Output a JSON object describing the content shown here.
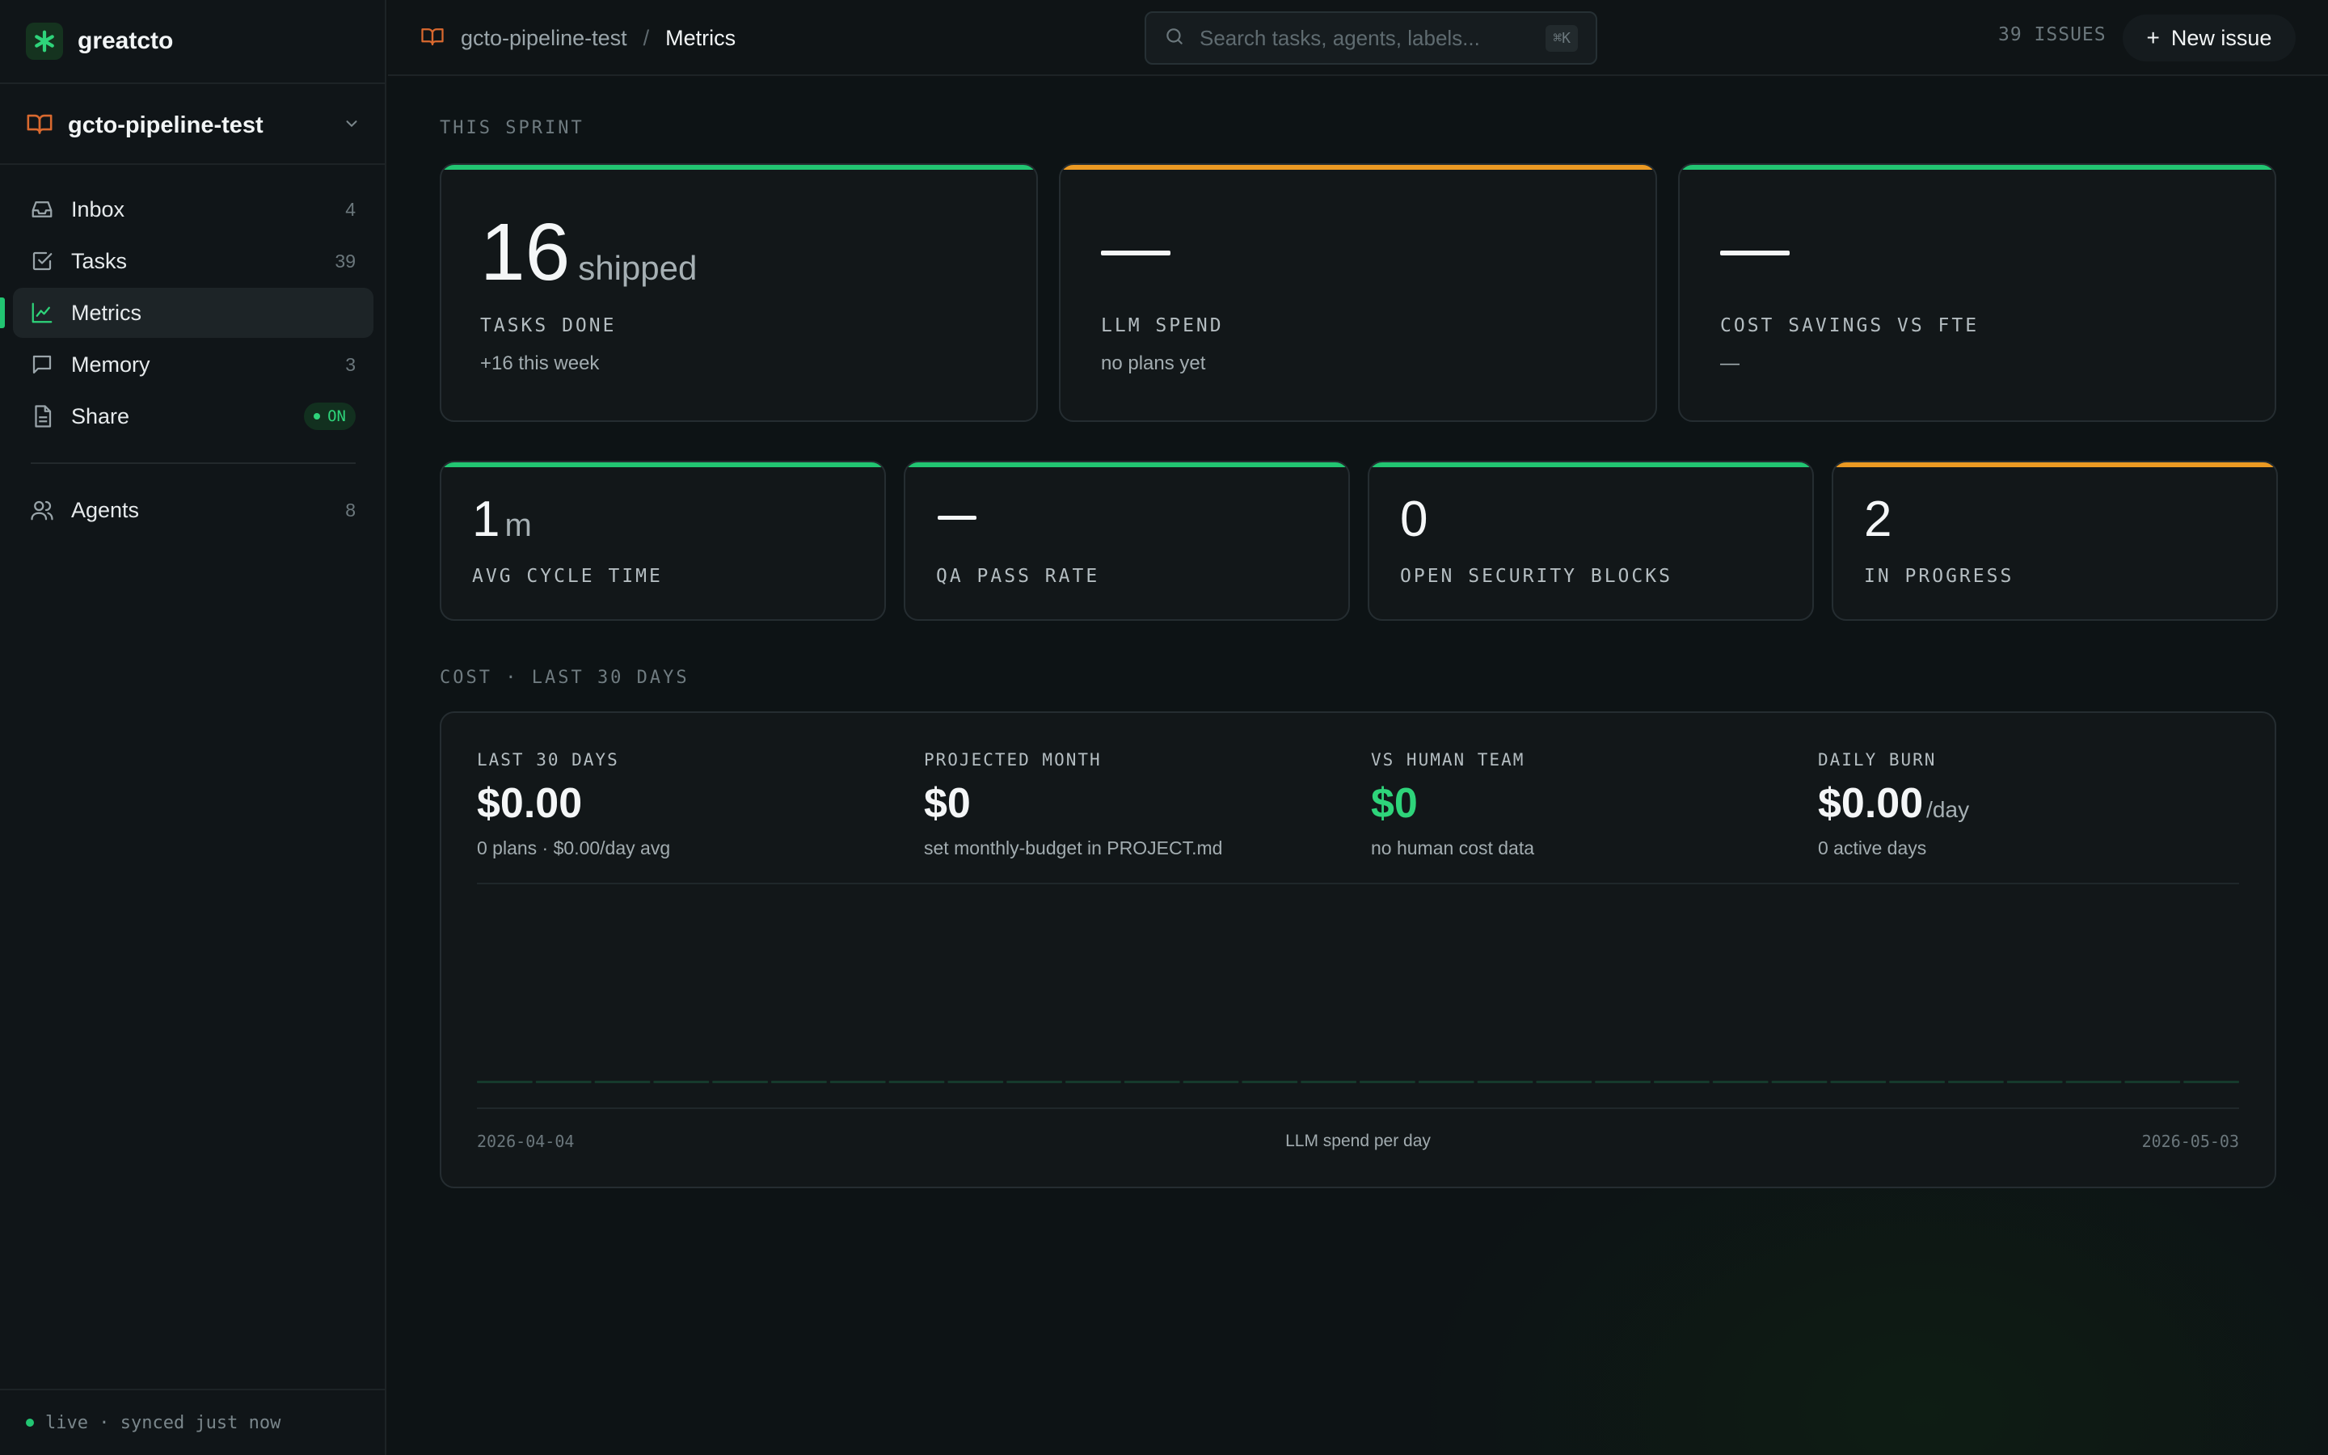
{
  "brand": {
    "name": "greatcto",
    "logo_icon": "asterisk-icon",
    "accent": "#22c572"
  },
  "project": {
    "name": "gcto-pipeline-test"
  },
  "nav": {
    "items": [
      {
        "label": "Inbox",
        "count": "4",
        "icon": "inbox-icon"
      },
      {
        "label": "Tasks",
        "count": "39",
        "icon": "checkbox-icon"
      },
      {
        "label": "Metrics",
        "count": "",
        "icon": "chart-icon",
        "active": true
      },
      {
        "label": "Memory",
        "count": "3",
        "icon": "chat-bubble-icon"
      },
      {
        "label": "Share",
        "badge": "ON",
        "icon": "document-icon"
      }
    ],
    "secondary": [
      {
        "label": "Agents",
        "count": "8",
        "icon": "users-icon"
      }
    ]
  },
  "footer": {
    "status": "live · synced just now"
  },
  "topbar": {
    "breadcrumb_project": "gcto-pipeline-test",
    "breadcrumb_separator": "/",
    "breadcrumb_current": "Metrics",
    "search_placeholder": "Search tasks, agents, labels...",
    "search_shortcut": "⌘K",
    "issues_count": "39 ISSUES",
    "new_issue_label": "New issue"
  },
  "sprint": {
    "label": "THIS SPRINT",
    "cards": [
      {
        "value": "16",
        "unit": "shipped",
        "title": "TASKS DONE",
        "sub": "+16 this week",
        "accent": "#22c572"
      },
      {
        "value": "—",
        "title": "LLM SPEND",
        "sub": "no plans yet",
        "accent": "#eb9a23"
      },
      {
        "value": "—",
        "title": "COST SAVINGS VS FTE",
        "sub": "—",
        "accent": "#22c572"
      }
    ],
    "small_cards": [
      {
        "value": "1",
        "unit": "m",
        "title": "AVG CYCLE TIME",
        "accent": "#22c572"
      },
      {
        "value": "—",
        "title": "QA PASS RATE",
        "accent": "#22c572"
      },
      {
        "value": "0",
        "title": "OPEN SECURITY BLOCKS",
        "accent": "#22c572"
      },
      {
        "value": "2",
        "title": "IN PROGRESS",
        "accent": "#eb9a23"
      }
    ]
  },
  "cost": {
    "label": "COST · LAST 30 DAYS",
    "columns": [
      {
        "title": "LAST 30 DAYS",
        "value": "$0.00",
        "sub": "0 plans · $0.00/day avg"
      },
      {
        "title": "PROJECTED MONTH",
        "value": "$0",
        "sub": "set monthly-budget in PROJECT.md"
      },
      {
        "title": "VS HUMAN TEAM",
        "value": "$0",
        "sub": "no human cost data",
        "color": "#2ed47a"
      },
      {
        "title": "DAILY BURN",
        "value": "$0.00",
        "unit": "/day",
        "sub": "0 active days"
      }
    ],
    "chart_data": {
      "type": "bar",
      "title": "LLM spend per day",
      "x_start": "2026-04-04",
      "x_end": "2026-05-03",
      "values": [
        0,
        0,
        0,
        0,
        0,
        0,
        0,
        0,
        0,
        0,
        0,
        0,
        0,
        0,
        0,
        0,
        0,
        0,
        0,
        0,
        0,
        0,
        0,
        0,
        0,
        0,
        0,
        0,
        0,
        0
      ],
      "bar_color": "#163a2c"
    }
  }
}
